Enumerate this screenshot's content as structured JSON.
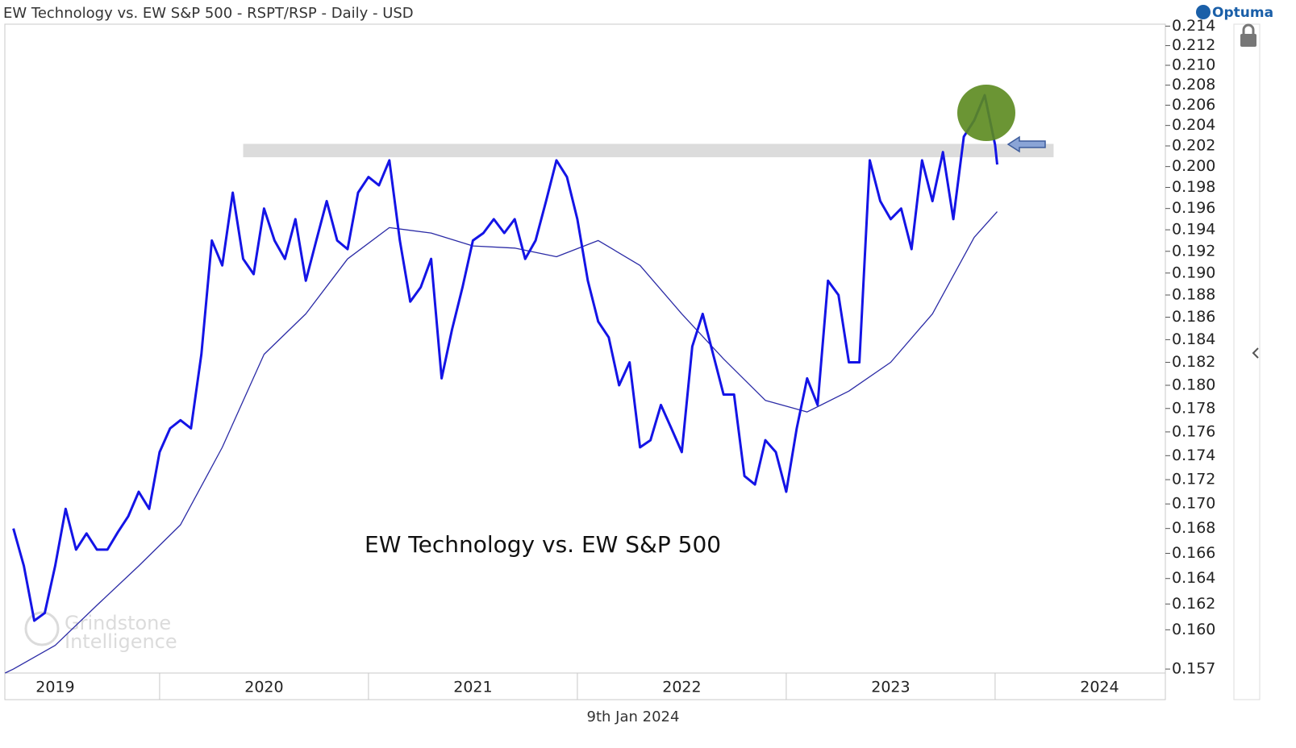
{
  "chart_data": {
    "type": "line",
    "title": "EW Technology vs. EW S&P 500 - RSPT/RSP - Daily - USD",
    "annotation": "EW Technology vs. EW S&P 500",
    "date_label": "9th Jan 2024",
    "brand": "Optuma",
    "watermark": [
      "Grindstone",
      "Intelligence"
    ],
    "log_scale": true,
    "xlim": [
      2019.259,
      2024.815
    ],
    "xticks": [
      {
        "value": 2019.5,
        "label": "2019"
      },
      {
        "value": 2020.5,
        "label": "2020"
      },
      {
        "value": 2021.5,
        "label": "2021"
      },
      {
        "value": 2022.5,
        "label": "2022"
      },
      {
        "value": 2023.5,
        "label": "2023"
      },
      {
        "value": 2024.5,
        "label": "2024"
      }
    ],
    "ylim": [
      0.1567,
      0.2142
    ],
    "yticks": [
      {
        "value": 0.157,
        "label": "0.157"
      },
      {
        "value": 0.16,
        "label": "0.160"
      },
      {
        "value": 0.162,
        "label": "0.162"
      },
      {
        "value": 0.164,
        "label": "0.164"
      },
      {
        "value": 0.166,
        "label": "0.166"
      },
      {
        "value": 0.168,
        "label": "0.168"
      },
      {
        "value": 0.17,
        "label": "0.170"
      },
      {
        "value": 0.172,
        "label": "0.172"
      },
      {
        "value": 0.174,
        "label": "0.174"
      },
      {
        "value": 0.176,
        "label": "0.176"
      },
      {
        "value": 0.178,
        "label": "0.178"
      },
      {
        "value": 0.18,
        "label": "0.180"
      },
      {
        "value": 0.182,
        "label": "0.182"
      },
      {
        "value": 0.184,
        "label": "0.184"
      },
      {
        "value": 0.186,
        "label": "0.186"
      },
      {
        "value": 0.188,
        "label": "0.188"
      },
      {
        "value": 0.19,
        "label": "0.190"
      },
      {
        "value": 0.192,
        "label": "0.192"
      },
      {
        "value": 0.194,
        "label": "0.194"
      },
      {
        "value": 0.196,
        "label": "0.196"
      },
      {
        "value": 0.198,
        "label": "0.198"
      },
      {
        "value": 0.2,
        "label": "0.200"
      },
      {
        "value": 0.202,
        "label": "0.202"
      },
      {
        "value": 0.204,
        "label": "0.204"
      },
      {
        "value": 0.206,
        "label": "0.206"
      },
      {
        "value": 0.208,
        "label": "0.208"
      },
      {
        "value": 0.21,
        "label": "0.210"
      },
      {
        "value": 0.212,
        "label": "0.212"
      },
      {
        "value": 0.214,
        "label": "0.214"
      }
    ],
    "resistance_zone": {
      "xmin": 2020.4,
      "xmax": 2024.28,
      "ymin": 0.2009,
      "ymax": 0.2022,
      "color": "#dcdcdc"
    },
    "series": [
      {
        "color": "#1414e6",
        "width": 3,
        "x": [
          2019.3,
          2019.35,
          2019.4,
          2019.45,
          2019.5,
          2019.55,
          2019.6,
          2019.65,
          2019.7,
          2019.75,
          2019.8,
          2019.85,
          2019.9,
          2019.95,
          2020.0,
          2020.05,
          2020.1,
          2020.15,
          2020.2,
          2020.25,
          2020.3,
          2020.35,
          2020.4,
          2020.45,
          2020.5,
          2020.55,
          2020.6,
          2020.65,
          2020.7,
          2020.75,
          2020.8,
          2020.85,
          2020.9,
          2020.95,
          2021.0,
          2021.05,
          2021.1,
          2021.15,
          2021.2,
          2021.25,
          2021.3,
          2021.35,
          2021.4,
          2021.45,
          2021.5,
          2021.55,
          2021.6,
          2021.65,
          2021.7,
          2021.75,
          2021.8,
          2021.85,
          2021.9,
          2021.95,
          2022.0,
          2022.05,
          2022.1,
          2022.15,
          2022.2,
          2022.25,
          2022.3,
          2022.35,
          2022.4,
          2022.45,
          2022.5,
          2022.55,
          2022.6,
          2022.65,
          2022.7,
          2022.75,
          2022.8,
          2022.85,
          2022.9,
          2022.95,
          2023.0,
          2023.05,
          2023.1,
          2023.15,
          2023.2,
          2023.25,
          2023.3,
          2023.35,
          2023.4,
          2023.45,
          2023.5,
          2023.55,
          2023.6,
          2023.65,
          2023.7,
          2023.75,
          2023.8,
          2023.85,
          2023.9,
          2023.95,
          2024.0,
          2024.01
        ],
        "values": [
          0.168,
          0.165,
          0.1607,
          0.1613,
          0.165,
          0.1696,
          0.1663,
          0.1676,
          0.1663,
          0.1663,
          0.1677,
          0.169,
          0.171,
          0.1696,
          0.1743,
          0.1763,
          0.177,
          0.1763,
          0.1827,
          0.193,
          0.1907,
          0.1975,
          0.1913,
          0.1899,
          0.196,
          0.193,
          0.1913,
          0.195,
          0.1893,
          0.193,
          0.1967,
          0.193,
          0.1922,
          0.1975,
          0.199,
          0.1982,
          0.2006,
          0.193,
          0.1874,
          0.1887,
          0.1913,
          0.1806,
          0.1849,
          0.1887,
          0.193,
          0.1937,
          0.195,
          0.1937,
          0.195,
          0.1913,
          0.193,
          0.1967,
          0.2006,
          0.199,
          0.195,
          0.1893,
          0.1856,
          0.1842,
          0.18,
          0.182,
          0.1747,
          0.1753,
          0.1783,
          0.1763,
          0.1743,
          0.1834,
          0.1863,
          0.1827,
          0.1792,
          0.1792,
          0.1723,
          0.1716,
          0.1753,
          0.1743,
          0.171,
          0.1763,
          0.1806,
          0.1783,
          0.1893,
          0.188,
          0.182,
          0.182,
          0.2006,
          0.1967,
          0.195,
          0.196,
          0.1922,
          0.2006,
          0.1967,
          0.2014,
          0.195,
          0.2029,
          0.2045,
          0.207,
          0.2021,
          0.2002
        ]
      },
      {
        "color": "#2b2ba6",
        "width": 1.3,
        "x": [
          2019.26,
          2019.3,
          2019.5,
          2019.7,
          2019.9,
          2020.1,
          2020.3,
          2020.5,
          2020.7,
          2020.9,
          2021.1,
          2021.3,
          2021.5,
          2021.7,
          2021.9,
          2022.1,
          2022.3,
          2022.5,
          2022.7,
          2022.9,
          2023.1,
          2023.3,
          2023.5,
          2023.7,
          2023.9,
          2024.01
        ],
        "values": [
          0.1567,
          0.157,
          0.1588,
          0.1619,
          0.165,
          0.1683,
          0.1747,
          0.1827,
          0.1863,
          0.1913,
          0.1942,
          0.1937,
          0.1925,
          0.1923,
          0.1915,
          0.193,
          0.1907,
          0.1863,
          0.1823,
          0.1787,
          0.1777,
          0.1795,
          0.182,
          0.1863,
          0.1933,
          0.1957
        ]
      }
    ]
  }
}
